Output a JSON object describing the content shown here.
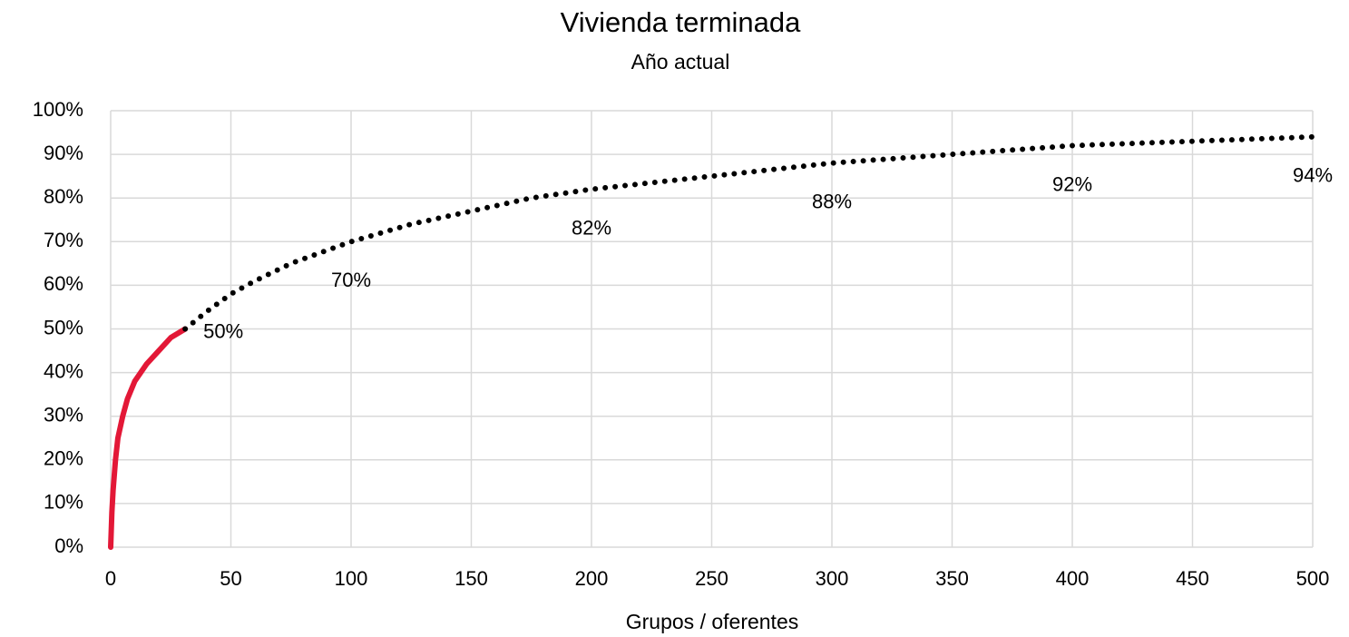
{
  "chart_data": {
    "type": "line",
    "title": "Vivienda terminada",
    "subtitle": "Año actual",
    "x_label": "Grupos / oferentes",
    "xlim": [
      0,
      500
    ],
    "xticks": [
      0,
      50,
      100,
      150,
      200,
      250,
      300,
      350,
      400,
      450,
      500
    ],
    "ylim": [
      0,
      100
    ],
    "yticks": [
      {
        "value": 0,
        "label": "0%"
      },
      {
        "value": 10,
        "label": "10%"
      },
      {
        "value": 20,
        "label": "20%"
      },
      {
        "value": 30,
        "label": "30%"
      },
      {
        "value": 40,
        "label": "40%"
      },
      {
        "value": 50,
        "label": "50%"
      },
      {
        "value": 60,
        "label": "60%"
      },
      {
        "value": 70,
        "label": "70%"
      },
      {
        "value": 80,
        "label": "80%"
      },
      {
        "value": 90,
        "label": "90%"
      },
      {
        "value": 100,
        "label": "100%"
      }
    ],
    "grid": true,
    "series": [
      {
        "color": "#e31837",
        "style": "solid",
        "x": [
          0,
          0.5,
          1,
          2,
          3,
          5,
          7,
          10,
          15,
          20,
          25,
          31
        ],
        "values": [
          0,
          8,
          13,
          20,
          25,
          30,
          34,
          38,
          42,
          45,
          48,
          50
        ]
      },
      {
        "color": "#000000",
        "style": "dotted",
        "x": [
          31,
          40,
          50,
          60,
          75,
          100,
          125,
          150,
          175,
          200,
          250,
          300,
          350,
          400,
          450,
          500
        ],
        "values": [
          50,
          54,
          58,
          61,
          65,
          70,
          74,
          77,
          80,
          82,
          85,
          88,
          90,
          92,
          93,
          94
        ],
        "value_labels": [
          "50%",
          null,
          null,
          null,
          null,
          "70%",
          null,
          null,
          null,
          "82%",
          null,
          "88%",
          null,
          "92%",
          null,
          "94%"
        ]
      }
    ]
  }
}
